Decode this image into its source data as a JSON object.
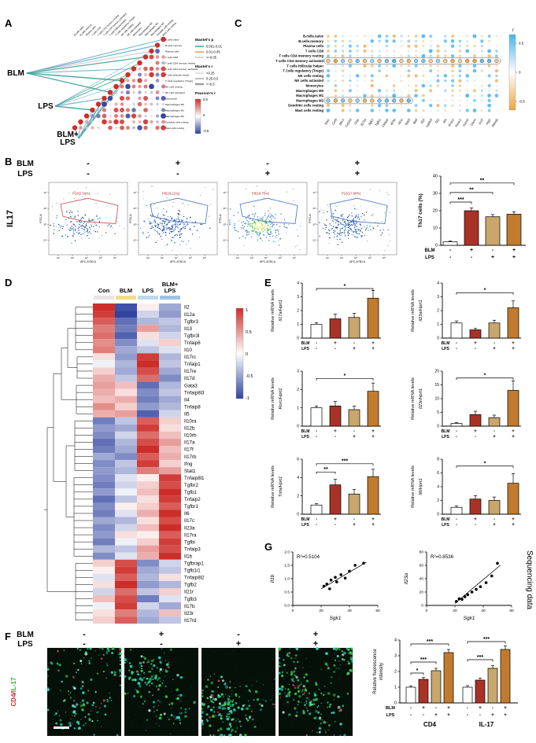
{
  "panel_letters": {
    "A": "A",
    "B": "B",
    "C": "C",
    "D": "D",
    "E": "E",
    "F": "F",
    "G": "G"
  },
  "bar_colors": [
    "#ffffff",
    "#a93226",
    "#c9a66b",
    "#c07b2e"
  ],
  "cell_types": [
    "B.cells.naive",
    "B.cells.memory",
    "Plasma cells",
    "T cells CD8",
    "T cells CD4 memory resting",
    "T cells CD4 memory activated",
    "T cells follicular helper",
    "T Cells regulatory (Tregs)",
    "NK cells resting",
    "NK cells activated",
    "Monocytes",
    "Macrophages M0",
    "Macrophages M1",
    "Macrophages M2",
    "Dendritic cells resting",
    "Mast cells resting"
  ],
  "panelA": {
    "nodes": [
      [
        "BLM"
      ],
      [
        "LPS"
      ],
      [
        "BLM+",
        "LPS"
      ]
    ],
    "legend": {
      "mantels_p_title": "Mantel's p",
      "mantels_p_items": [
        "0.001-0.01",
        "0.01-0.05",
        ">=0.05"
      ],
      "mantels_r_title": "Mantel's r",
      "mantels_r_items": [
        "<0.25",
        "0.25-0.5",
        ">=0.5"
      ],
      "pearsons_title": "Pearson's r",
      "pearsons_ticks": [
        "0.5",
        "0",
        "-0.5"
      ]
    }
  },
  "panelC": {
    "genes": [
      "Rorc",
      "Ccr6",
      "Mrc1",
      "Cd163",
      "Ctss",
      "Il17ra",
      "Sgk1",
      "Tgfb1",
      "Cebpb",
      "Il23a",
      "Il21r",
      "Stat3",
      "Batf",
      "Il22",
      "Lgals3",
      "Tlr2",
      "Ahr",
      "Emp1",
      "Runx1",
      "Gzmb",
      "Osmr",
      "Ccl7",
      "Arg1",
      "Retnla"
    ],
    "colorbar": {
      "title": "r",
      "ticks": [
        "0.5",
        "0",
        "-0.5"
      ]
    }
  },
  "panelB": {
    "row_labels": [
      "BLM",
      "LPS"
    ],
    "blm_signs": [
      "-",
      "+",
      "-",
      "+"
    ],
    "lps_signs": [
      "-",
      "-",
      "+",
      "+"
    ],
    "side_label": "IL17",
    "flow": {
      "xlabel": "APC-A750-A",
      "ylabel": "FITC-A",
      "xticks": [
        "10²",
        "10³",
        "10⁴",
        "10⁵",
        "10⁶"
      ],
      "yticks": [
        "10⁷",
        "10⁶",
        "10⁵",
        "10⁴"
      ],
      "gates": [
        "P10(2.34%)",
        "P9(20.22%)",
        "P9(18.75%)",
        "P10(17.86%)"
      ]
    },
    "bar_chart": {
      "type": "bar",
      "ylabel": "Th17 cells (%)",
      "ylim": [
        0,
        40
      ],
      "yticks": [
        0,
        10,
        20,
        30,
        40
      ],
      "values": [
        2,
        20,
        16.5,
        18
      ],
      "errors": [
        0.5,
        1.6,
        1.3,
        1.4
      ],
      "sig": [
        {
          "i": 0,
          "j": 1,
          "v": 25,
          "label": "***"
        },
        {
          "i": 0,
          "j": 2,
          "v": 30.5,
          "label": "**"
        },
        {
          "i": 0,
          "j": 3,
          "v": 36,
          "label": "**"
        }
      ]
    }
  },
  "panelD": {
    "col_headers": [
      [
        "Con"
      ],
      [
        "BLM"
      ],
      [
        "LPS"
      ],
      [
        "BLM+",
        "LPS"
      ]
    ],
    "annotation_colors": [
      "#e6e6e6",
      "#f1dd8a",
      "#bdd9ee",
      "#9fc3e6"
    ],
    "legend_ticks": [
      "1",
      "0.5",
      "0",
      "-0.5",
      "-1"
    ],
    "heatmap": {
      "type": "heatmap",
      "columns": [
        "Con",
        "BLM",
        "LPS",
        "BLM+LPS"
      ],
      "genes": [
        "Il2",
        "Il12a",
        "Tgfbr3",
        "Il13",
        "Tgfbr3l",
        "Tnfaip6",
        "Il10",
        "Il17rc",
        "Tnfaip1",
        "Il17re",
        "Il17d",
        "Gata3",
        "Tnfaip8l3",
        "Il4",
        "Tnfaip8",
        "Il5",
        "Il10ra",
        "Il12b",
        "Il10rb",
        "Il17a",
        "Il17f",
        "Il17rb",
        "Ifng",
        "Stat1",
        "Tnfaip8l1",
        "Tgfbr2",
        "Tgfb1",
        "Tnfaip2",
        "Tgfbr1",
        "Il6",
        "Il17c",
        "Il23a",
        "Il17ra",
        "Tgfbi",
        "Tnfaip3",
        "Il1b",
        "Tgfbrap1",
        "Tgfb1i1",
        "Tnfaip8l2",
        "Tgfb2",
        "Il21r",
        "Tgfb3",
        "Il17b",
        "Il23r",
        "Il17rd"
      ],
      "values": [
        [
          1.3,
          -1.2,
          0.1,
          -0.6
        ],
        [
          1.2,
          -1.3,
          -0.3,
          -0.7
        ],
        [
          1.0,
          -1.0,
          -0.5,
          -0.4
        ],
        [
          0.8,
          -0.9,
          0.6,
          -0.5
        ],
        [
          0.9,
          -1.1,
          0.2,
          -0.3
        ],
        [
          0.7,
          -0.8,
          -0.2,
          0.3
        ],
        [
          0.8,
          -0.6,
          -0.4,
          -0.2
        ],
        [
          0.2,
          -0.7,
          1.2,
          -0.5
        ],
        [
          -0.1,
          -0.5,
          1.3,
          -0.4
        ],
        [
          0.3,
          -0.6,
          1.1,
          -0.6
        ],
        [
          0.5,
          -0.4,
          0.9,
          -0.8
        ],
        [
          0.6,
          0.4,
          -1.0,
          -0.5
        ],
        [
          0.5,
          0.2,
          -0.8,
          -0.4
        ],
        [
          0.4,
          0.5,
          -0.9,
          -0.6
        ],
        [
          0.7,
          0.3,
          -0.7,
          -0.5
        ],
        [
          0.5,
          0.6,
          -1.1,
          -0.3
        ],
        [
          -0.9,
          -0.4,
          1.0,
          0.3
        ],
        [
          -0.7,
          -0.6,
          1.2,
          0.2
        ],
        [
          -0.8,
          -0.3,
          0.9,
          0.4
        ],
        [
          -1.0,
          -0.5,
          1.1,
          0.6
        ],
        [
          -0.9,
          -0.6,
          1.3,
          0.4
        ],
        [
          -0.6,
          -0.8,
          1.0,
          0.5
        ],
        [
          -0.8,
          -0.4,
          1.2,
          0.3
        ],
        [
          -0.7,
          -0.5,
          0.8,
          0.6
        ],
        [
          -0.8,
          -0.2,
          0.1,
          1.2
        ],
        [
          -0.9,
          -0.3,
          0.3,
          1.1
        ],
        [
          -0.7,
          -0.1,
          0.4,
          1.3
        ],
        [
          -1.0,
          -0.4,
          0.2,
          1.2
        ],
        [
          -0.8,
          0.1,
          0.3,
          1.0
        ],
        [
          -0.9,
          -0.2,
          0.5,
          1.3
        ],
        [
          -0.6,
          -0.5,
          0.2,
          1.1
        ],
        [
          -0.8,
          -0.3,
          0.4,
          1.4
        ],
        [
          -0.7,
          0.2,
          0.1,
          1.0
        ],
        [
          -0.9,
          -0.1,
          0.3,
          1.2
        ],
        [
          -0.5,
          -0.4,
          0.6,
          1.1
        ],
        [
          -0.8,
          -0.2,
          0.5,
          1.3
        ],
        [
          0.3,
          1.1,
          -0.8,
          -0.3
        ],
        [
          0.1,
          1.2,
          -0.6,
          -0.4
        ],
        [
          -0.2,
          1.0,
          -0.5,
          0.2
        ],
        [
          0.2,
          1.3,
          -0.7,
          -0.5
        ],
        [
          -0.3,
          0.9,
          -0.4,
          0.3
        ],
        [
          0.4,
          1.1,
          -0.9,
          -0.2
        ],
        [
          -0.1,
          1.2,
          -0.3,
          -0.6
        ],
        [
          0.2,
          0.8,
          -0.5,
          0.4
        ],
        [
          0.3,
          1.0,
          -0.6,
          -0.4
        ]
      ]
    }
  },
  "panelE": {
    "ylabel": "Relative mRNA levels",
    "row_labels": [
      "BLM",
      "LPS"
    ],
    "blm_signs": [
      "-",
      "+",
      "-",
      "+"
    ],
    "lps_signs": [
      "-",
      "-",
      "+",
      "+"
    ],
    "charts": [
      {
        "gene": "Il17a/Hprt1",
        "ylim": [
          0,
          4
        ],
        "yticks": [
          0,
          1,
          2,
          3,
          4
        ],
        "values": [
          1,
          1.4,
          1.5,
          2.9
        ],
        "errors": [
          0.12,
          0.35,
          0.3,
          0.55
        ],
        "sig": [
          {
            "i": 0,
            "j": 3,
            "v": 3.6,
            "label": "*"
          }
        ]
      },
      {
        "gene": "Il23a/Hprt1",
        "ylim": [
          0,
          4
        ],
        "yticks": [
          0,
          1,
          2,
          3,
          4
        ],
        "values": [
          1.1,
          0.6,
          1.1,
          2.2
        ],
        "errors": [
          0.15,
          0.1,
          0.2,
          0.5
        ],
        "sig": [
          {
            "i": 0,
            "j": 3,
            "v": 3.3,
            "label": "*"
          }
        ]
      },
      {
        "gene": "Rorc/Hprt1",
        "ylim": [
          0,
          3
        ],
        "yticks": [
          0,
          1,
          2,
          3
        ],
        "values": [
          1,
          1.1,
          0.9,
          1.9
        ],
        "errors": [
          0.1,
          0.25,
          0.2,
          0.45
        ],
        "sig": [
          {
            "i": 0,
            "j": 3,
            "v": 2.6,
            "label": "*"
          }
        ]
      },
      {
        "gene": "Il23r/Hprt1",
        "ylim": [
          0,
          20
        ],
        "yticks": [
          0,
          5,
          10,
          15,
          20
        ],
        "values": [
          1,
          4.2,
          3.1,
          13
        ],
        "errors": [
          0.3,
          1.2,
          0.9,
          3.5
        ],
        "sig": [
          {
            "i": 0,
            "j": 3,
            "v": 17.5,
            "label": "*"
          }
        ]
      },
      {
        "gene": "Tnfa/Hprt1",
        "ylim": [
          0,
          6
        ],
        "yticks": [
          0,
          2,
          4,
          6
        ],
        "values": [
          1,
          3.2,
          2.2,
          4.1
        ],
        "errors": [
          0.15,
          0.6,
          0.5,
          0.8
        ],
        "sig": [
          {
            "i": 0,
            "j": 1,
            "v": 4.6,
            "label": "**"
          },
          {
            "i": 0,
            "j": 3,
            "v": 5.5,
            "label": "***"
          }
        ]
      },
      {
        "gene": "Il6/Hprt1",
        "ylim": [
          0,
          8
        ],
        "yticks": [
          0,
          2,
          4,
          6,
          8
        ],
        "values": [
          1,
          2.2,
          2,
          4.5
        ],
        "errors": [
          0.2,
          0.5,
          0.5,
          1.4
        ],
        "sig": [
          {
            "i": 0,
            "j": 3,
            "v": 7,
            "label": "*"
          }
        ]
      }
    ]
  },
  "panelG": {
    "side_label": "Sequencing data",
    "plots": [
      {
        "r2": "R²=0.5104",
        "xlabel": "Sgk1",
        "ylabel": "Il1b",
        "xlim": [
          0,
          60
        ],
        "xticks": [
          0,
          20,
          40,
          60
        ],
        "ylim": [
          0,
          2
        ],
        "yticks": [
          "0.0",
          "0.5",
          "1.0",
          "1.5",
          "2.0"
        ],
        "points": [
          [
            22,
            0.72
          ],
          [
            24,
            0.8
          ],
          [
            26,
            0.62
          ],
          [
            27,
            0.95
          ],
          [
            30,
            1.05
          ],
          [
            31,
            0.88
          ],
          [
            34,
            1.15
          ],
          [
            37,
            1.02
          ],
          [
            40,
            1.28
          ],
          [
            44,
            1.5
          ],
          [
            50,
            1.58
          ]
        ],
        "line": [
          [
            20,
            0.62
          ],
          [
            52,
            1.62
          ]
        ]
      },
      {
        "r2": "R²=0.8536",
        "xlabel": "Sgk1",
        "ylabel": "Il23a",
        "xlim": [
          0,
          60
        ],
        "xticks": [
          0,
          20,
          40,
          60
        ],
        "ylim": [
          0,
          80
        ],
        "yticks": [
          "0",
          "20",
          "40",
          "60",
          "80"
        ],
        "points": [
          [
            21,
            6
          ],
          [
            23,
            10
          ],
          [
            25,
            9
          ],
          [
            27,
            13
          ],
          [
            29,
            16
          ],
          [
            32,
            20
          ],
          [
            35,
            24
          ],
          [
            38,
            28
          ],
          [
            42,
            34
          ],
          [
            46,
            44
          ],
          [
            50,
            63
          ]
        ],
        "line": [
          [
            20,
            3
          ],
          [
            52,
            60
          ]
        ]
      }
    ]
  },
  "panelF": {
    "row_labels": [
      "BLM",
      "LPS"
    ],
    "blm_signs": [
      "-",
      "+",
      "-",
      "+"
    ],
    "lps_signs": [
      "-",
      "-",
      "+",
      "+"
    ],
    "stain_label": [
      {
        "text": "CD4",
        "color": "#d42a2a"
      },
      {
        "text": "/",
        "color": "#222222"
      },
      {
        "text": "IL-17",
        "color": "#2db32d"
      }
    ],
    "bar_chart": {
      "type": "bar",
      "ylabel": [
        "Relative fluorescence",
        "intensity"
      ],
      "groups": [
        "CD4",
        "IL-17"
      ],
      "ylim": [
        0,
        4
      ],
      "yticks": [
        0,
        1,
        2,
        3,
        4
      ],
      "series_values": {
        "CD4": [
          1,
          1.5,
          2.05,
          3.2
        ],
        "IL-17": [
          1,
          1.45,
          2.2,
          3.4
        ]
      },
      "errors": {
        "CD4": [
          0.08,
          0.12,
          0.15,
          0.2
        ],
        "IL-17": [
          0.1,
          0.12,
          0.18,
          0.22
        ]
      },
      "sig": {
        "CD4": [
          {
            "i": 0,
            "j": 1,
            "v": 1.9,
            "label": "*"
          },
          {
            "i": 0,
            "j": 2,
            "v": 2.6,
            "label": "***"
          },
          {
            "i": 0,
            "j": 3,
            "v": 3.75,
            "label": "***"
          }
        ],
        "IL-17": [
          {
            "i": 0,
            "j": 2,
            "v": 2.75,
            "label": "***"
          },
          {
            "i": 0,
            "j": 3,
            "v": 3.9,
            "label": "***"
          }
        ]
      }
    }
  }
}
